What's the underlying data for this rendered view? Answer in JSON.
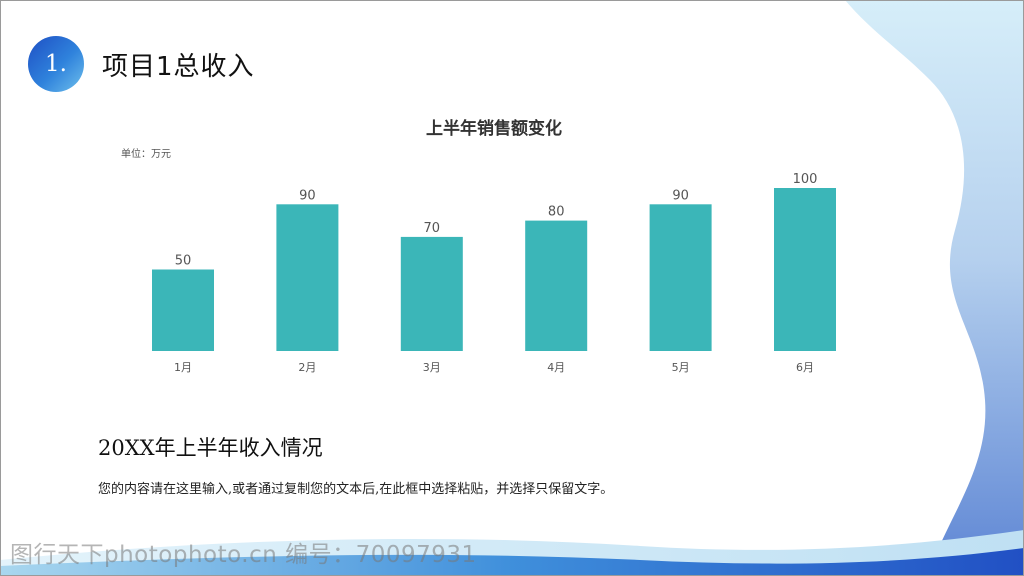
{
  "header": {
    "number": "1.",
    "title": "项目1总收入"
  },
  "chart_data": {
    "type": "bar",
    "title": "上半年销售额变化",
    "unit_label": "单位：万元",
    "categories": [
      "1月",
      "2月",
      "3月",
      "4月",
      "5月",
      "6月"
    ],
    "values": [
      50,
      90,
      70,
      80,
      90,
      100
    ],
    "ylim": [
      0,
      100
    ],
    "grid": false,
    "legend": "none",
    "bar_color": "#3bb6b8"
  },
  "content": {
    "heading": "20XX年上半年收入情况",
    "body": "您的内容请在这里输入,或者通过复制您的文本后,在此框中选择粘贴，并选择只保留文字。"
  },
  "watermark": "图行天下photophoto.cn 编号：70097931",
  "colors": {
    "accent_blue": "#2a6fd6",
    "light_blue": "#d4ecf8",
    "bar": "#3bb6b8"
  }
}
